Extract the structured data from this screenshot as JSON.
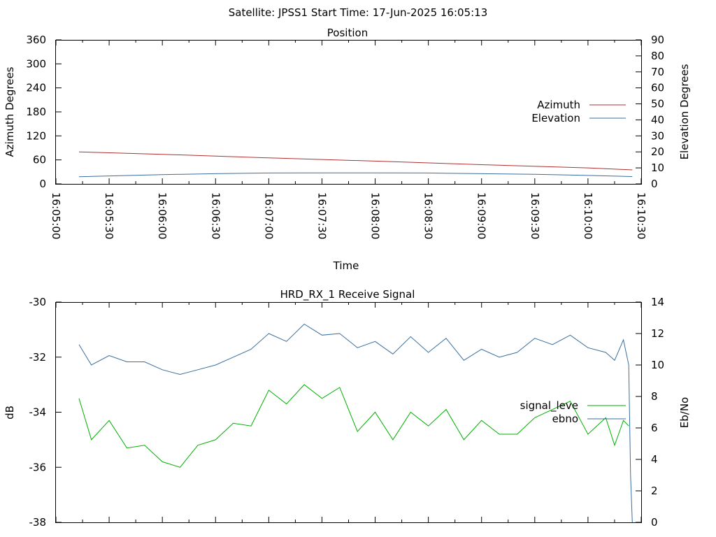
{
  "header": {
    "title": "Satellite: JPSS1    Start Time: 17-Jun-2025 16:05:13"
  },
  "chart_data": [
    {
      "type": "line",
      "title": "Position",
      "xlabel": "Time",
      "ylabel": "Azimuth Degrees",
      "y2label": "Elevation Degrees",
      "xlim": [
        "16:05:00",
        "16:10:30"
      ],
      "ylim": [
        0,
        360
      ],
      "y2lim": [
        0,
        90
      ],
      "x_ticks": [
        "16:05:00",
        "16:05:30",
        "16:06:00",
        "16:06:30",
        "16:07:00",
        "16:07:30",
        "16:08:00",
        "16:08:30",
        "16:09:00",
        "16:09:30",
        "16:10:00",
        "16:10:30"
      ],
      "y_ticks": [
        "0",
        "60",
        "120",
        "180",
        "240",
        "300",
        "360"
      ],
      "y2_ticks": [
        "0",
        "10",
        "20",
        "30",
        "40",
        "50",
        "60",
        "70",
        "80",
        "90"
      ],
      "legend": "right",
      "grid": false,
      "series": [
        {
          "name": "Azimuth",
          "axis": "y",
          "color": "#b03030",
          "x": [
            "16:05:13",
            "16:06:00",
            "16:07:00",
            "16:08:00",
            "16:09:00",
            "16:10:00",
            "16:10:25"
          ],
          "values": [
            80,
            74,
            65,
            57,
            48,
            40,
            35
          ]
        },
        {
          "name": "Elevation",
          "axis": "y2",
          "color": "#3a6e9e",
          "x": [
            "16:05:13",
            "16:06:00",
            "16:06:30",
            "16:07:00",
            "16:07:30",
            "16:08:00",
            "16:08:30",
            "16:09:00",
            "16:09:30",
            "16:10:00",
            "16:10:25"
          ],
          "values": [
            4.5,
            5.8,
            6.4,
            6.8,
            6.9,
            6.9,
            6.8,
            6.4,
            6.0,
            5.3,
            4.6
          ]
        }
      ]
    },
    {
      "type": "line",
      "title": "HRD_RX_1 Receive Signal",
      "ylabel": "dB",
      "y2label": "Eb/No",
      "xlim": [
        "16:05:00",
        "16:10:30"
      ],
      "ylim": [
        -38,
        -30
      ],
      "y2lim": [
        0,
        14
      ],
      "y_ticks": [
        "-30",
        "-32",
        "-34",
        "-36",
        "-38"
      ],
      "y2_ticks": [
        "0",
        "2",
        "4",
        "6",
        "8",
        "10",
        "12",
        "14"
      ],
      "legend": "right",
      "grid": false,
      "series": [
        {
          "name": "signal_leve",
          "axis": "y",
          "color": "#00b000",
          "x": [
            "16:05:13",
            "16:05:20",
            "16:05:30",
            "16:05:40",
            "16:05:50",
            "16:06:00",
            "16:06:10",
            "16:06:20",
            "16:06:30",
            "16:06:40",
            "16:06:50",
            "16:07:00",
            "16:07:10",
            "16:07:20",
            "16:07:30",
            "16:07:40",
            "16:07:50",
            "16:08:00",
            "16:08:10",
            "16:08:20",
            "16:08:30",
            "16:08:40",
            "16:08:50",
            "16:09:00",
            "16:09:10",
            "16:09:20",
            "16:09:30",
            "16:09:40",
            "16:09:50",
            "16:10:00",
            "16:10:10",
            "16:10:15",
            "16:10:20",
            "16:10:23"
          ],
          "values": [
            -33.5,
            -35.0,
            -34.3,
            -35.3,
            -35.2,
            -35.8,
            -36.0,
            -35.2,
            -35.0,
            -34.4,
            -34.5,
            -33.2,
            -33.7,
            -33.0,
            -33.5,
            -33.1,
            -34.7,
            -34.0,
            -35.0,
            -34.0,
            -34.5,
            -33.9,
            -35.0,
            -34.3,
            -34.8,
            -34.8,
            -34.2,
            -33.9,
            -33.6,
            -34.8,
            -34.2,
            -35.2,
            -34.3,
            -34.5
          ]
        },
        {
          "name": "ebno",
          "axis": "y2",
          "color": "#3a6e9e",
          "x": [
            "16:05:13",
            "16:05:20",
            "16:05:30",
            "16:05:40",
            "16:05:50",
            "16:06:00",
            "16:06:10",
            "16:06:20",
            "16:06:30",
            "16:06:40",
            "16:06:50",
            "16:07:00",
            "16:07:10",
            "16:07:20",
            "16:07:30",
            "16:07:40",
            "16:07:50",
            "16:08:00",
            "16:08:10",
            "16:08:20",
            "16:08:30",
            "16:08:40",
            "16:08:50",
            "16:09:00",
            "16:09:10",
            "16:09:20",
            "16:09:30",
            "16:09:40",
            "16:09:50",
            "16:10:00",
            "16:10:10",
            "16:10:15",
            "16:10:20",
            "16:10:23",
            "16:10:24",
            "16:10:25"
          ],
          "values": [
            11.3,
            10.0,
            10.6,
            10.2,
            10.2,
            9.7,
            9.4,
            9.7,
            10.0,
            10.5,
            11.0,
            12.0,
            11.5,
            12.6,
            11.9,
            12.0,
            11.1,
            11.5,
            10.7,
            11.8,
            10.8,
            11.7,
            10.3,
            11.0,
            10.5,
            10.8,
            11.7,
            11.3,
            11.9,
            11.1,
            10.8,
            10.3,
            11.6,
            10.0,
            3.0,
            0.0
          ]
        }
      ]
    }
  ]
}
